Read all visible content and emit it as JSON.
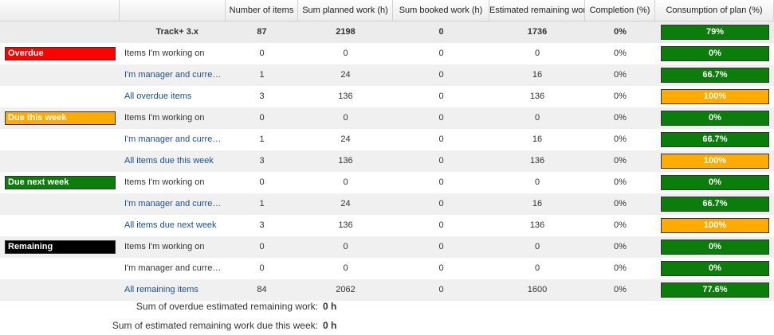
{
  "columns": [
    "",
    "",
    "Number of items",
    "Sum planned work (h)",
    "Sum booked work (h)",
    "Estimated remaining work",
    "Completion (%)",
    "Consumption of plan (%)"
  ],
  "colors": {
    "green": "#0a7d0a",
    "orange": "#ffab00",
    "red": "#ff0000",
    "black": "#000000"
  },
  "project_row": {
    "label": "Track+ 3.x",
    "items": "87",
    "planned": "2198",
    "booked": "0",
    "remaining": "1736",
    "completion": "0%",
    "consumption": "79%",
    "consumption_value": 0.79,
    "bar_color": "#0a7d0a"
  },
  "groups": [
    {
      "name": "Overdue",
      "color": "#ff0000",
      "rows": [
        {
          "label": "Items I'm working on",
          "link": false,
          "items": "0",
          "planned": "0",
          "booked": "0",
          "remaining": "0",
          "completion": "0%",
          "consumption": "0%",
          "consumption_value": 0,
          "bar_color": "#0a7d0a"
        },
        {
          "label": "I'm manager and currently responsible",
          "link": true,
          "items": "1",
          "planned": "24",
          "booked": "0",
          "remaining": "16",
          "completion": "0%",
          "consumption": "66.7%",
          "consumption_value": 0.667,
          "bar_color": "#0a7d0a"
        },
        {
          "label": "All overdue items",
          "link": true,
          "items": "3",
          "planned": "136",
          "booked": "0",
          "remaining": "136",
          "completion": "0%",
          "consumption": "100%",
          "consumption_value": 1,
          "bar_color": "#ffab00"
        }
      ]
    },
    {
      "name": "Due this week",
      "color": "#ffab00",
      "rows": [
        {
          "label": "Items I'm working on",
          "link": false,
          "items": "0",
          "planned": "0",
          "booked": "0",
          "remaining": "0",
          "completion": "0%",
          "consumption": "0%",
          "consumption_value": 0,
          "bar_color": "#0a7d0a"
        },
        {
          "label": "I'm manager and currently responsible",
          "link": true,
          "items": "1",
          "planned": "24",
          "booked": "0",
          "remaining": "16",
          "completion": "0%",
          "consumption": "66.7%",
          "consumption_value": 0.667,
          "bar_color": "#0a7d0a"
        },
        {
          "label": "All items due this week",
          "link": true,
          "items": "3",
          "planned": "136",
          "booked": "0",
          "remaining": "136",
          "completion": "0%",
          "consumption": "100%",
          "consumption_value": 1,
          "bar_color": "#ffab00"
        }
      ]
    },
    {
      "name": "Due next week",
      "color": "#0a7d0a",
      "rows": [
        {
          "label": "Items I'm working on",
          "link": false,
          "items": "0",
          "planned": "0",
          "booked": "0",
          "remaining": "0",
          "completion": "0%",
          "consumption": "0%",
          "consumption_value": 0,
          "bar_color": "#0a7d0a"
        },
        {
          "label": "I'm manager and currently responsible",
          "link": true,
          "items": "1",
          "planned": "24",
          "booked": "0",
          "remaining": "16",
          "completion": "0%",
          "consumption": "66.7%",
          "consumption_value": 0.667,
          "bar_color": "#0a7d0a"
        },
        {
          "label": "All items due next week",
          "link": true,
          "items": "3",
          "planned": "136",
          "booked": "0",
          "remaining": "136",
          "completion": "0%",
          "consumption": "100%",
          "consumption_value": 1,
          "bar_color": "#ffab00"
        }
      ]
    },
    {
      "name": "Remaining",
      "color": "#000000",
      "rows": [
        {
          "label": "Items I'm working on",
          "link": false,
          "items": "0",
          "planned": "0",
          "booked": "0",
          "remaining": "0",
          "completion": "0%",
          "consumption": "0%",
          "consumption_value": 0,
          "bar_color": "#0a7d0a"
        },
        {
          "label": "I'm manager and currently responsible",
          "link": false,
          "items": "0",
          "planned": "0",
          "booked": "0",
          "remaining": "0",
          "completion": "0%",
          "consumption": "0%",
          "consumption_value": 0,
          "bar_color": "#0a7d0a"
        },
        {
          "label": "All remaining items",
          "link": true,
          "items": "84",
          "planned": "2062",
          "booked": "0",
          "remaining": "1600",
          "completion": "0%",
          "consumption": "77.6%",
          "consumption_value": 0.776,
          "bar_color": "#0a7d0a"
        }
      ]
    }
  ],
  "summary": [
    {
      "label": "Sum of overdue estimated remaining work:",
      "value": "0 h"
    },
    {
      "label": "Sum of estimated remaining work due this week:",
      "value": "0 h"
    }
  ]
}
